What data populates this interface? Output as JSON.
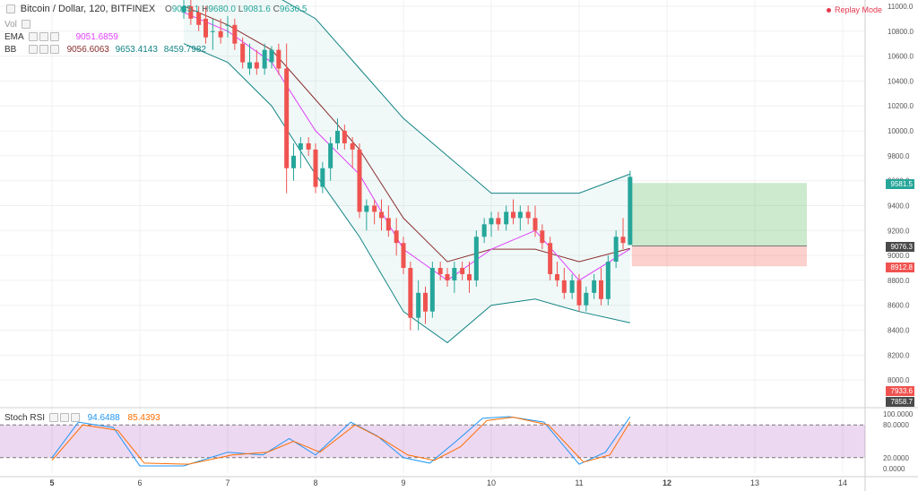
{
  "header": {
    "symbol": "Bitcoin / Dollar, 120, BITFINEX",
    "ohlc": {
      "o_label": "O",
      "o": "9085.1",
      "h_label": "H",
      "h": "9680.0",
      "l_label": "L",
      "l": "9081.6",
      "c_label": "C",
      "c": "9630.5"
    },
    "vol_label": "Vol"
  },
  "indicators": {
    "ema": {
      "name": "EMA",
      "value": "9051.6859",
      "color": "#e040fb"
    },
    "bb": {
      "name": "BB",
      "basis": "9056.6063",
      "upper": "9653.4143",
      "lower": "8459.7982",
      "basis_color": "#8b2e2e",
      "band_color": "#138484"
    }
  },
  "replay": {
    "label": "Replay Mode"
  },
  "stoch": {
    "name": "Stoch RSI",
    "k": "94.6488",
    "d": "85.4393",
    "k_color": "#2196f3",
    "d_color": "#ff6d00",
    "upper": 80,
    "lower": 20
  },
  "price_tags": {
    "last": {
      "value": "9581.5",
      "color": "#26a69a"
    },
    "entry": {
      "value": "9076.3",
      "color": "#4a4a4a"
    },
    "stop": {
      "value": "8912.8",
      "color": "#ef5350"
    },
    "low_a": {
      "value": "7933.6",
      "color": "#ef5350"
    },
    "low_b": {
      "value": "7858.7",
      "color": "#4a4a4a"
    }
  },
  "position": {
    "target": 9581.5,
    "entry": 9076.3,
    "stop": 8912.8
  },
  "chart_data": {
    "type": "candlestick",
    "price_axis": {
      "ticks": [
        11000,
        10800,
        10600,
        10400,
        10200,
        10000,
        9800,
        9600,
        9400,
        9200,
        9000,
        8800,
        8600,
        8400,
        8200,
        8000
      ],
      "ylim": [
        7800,
        11050
      ]
    },
    "stoch_axis": {
      "ticks": [
        "100.0000",
        "80.0000",
        "20.0000",
        "0.0000"
      ]
    },
    "x_ticks": [
      {
        "label": "5",
        "x": 5.0,
        "bold": true
      },
      {
        "label": "6",
        "x": 6.0
      },
      {
        "label": "7",
        "x": 7.0
      },
      {
        "label": "8",
        "x": 8.0
      },
      {
        "label": "9",
        "x": 9.0
      },
      {
        "label": "10",
        "x": 10.0
      },
      {
        "label": "11",
        "x": 11.0
      },
      {
        "label": "12",
        "x": 12.0,
        "bold": true
      },
      {
        "label": "13",
        "x": 13.0
      },
      {
        "label": "14",
        "x": 14.0
      }
    ],
    "candles": [
      [
        6.5,
        10950,
        11050,
        10900,
        11000
      ],
      [
        6.58,
        11000,
        11050,
        10850,
        10900
      ],
      [
        6.67,
        10950,
        11000,
        10800,
        10850
      ],
      [
        6.75,
        10900,
        11000,
        10700,
        10750
      ],
      [
        6.83,
        10800,
        10900,
        10650,
        10800
      ],
      [
        6.92,
        10800,
        10900,
        10700,
        10750
      ],
      [
        7.0,
        10850,
        10920,
        10750,
        10850
      ],
      [
        7.08,
        10850,
        10900,
        10650,
        10700
      ],
      [
        7.17,
        10700,
        10750,
        10500,
        10550
      ],
      [
        7.25,
        10500,
        10700,
        10450,
        10550
      ],
      [
        7.33,
        10550,
        10650,
        10450,
        10500
      ],
      [
        7.42,
        10500,
        10700,
        10450,
        10650
      ],
      [
        7.5,
        10550,
        10680,
        10500,
        10650
      ],
      [
        7.58,
        10650,
        10700,
        10450,
        10500
      ],
      [
        7.67,
        10500,
        10700,
        9500,
        9700
      ],
      [
        7.75,
        9700,
        9900,
        9600,
        9800
      ],
      [
        7.83,
        9850,
        9950,
        9700,
        9900
      ],
      [
        7.92,
        9900,
        9950,
        9800,
        9850
      ],
      [
        8.0,
        9850,
        9900,
        9500,
        9550
      ],
      [
        8.08,
        9550,
        9750,
        9500,
        9700
      ],
      [
        8.17,
        9700,
        9950,
        9600,
        9900
      ],
      [
        8.25,
        9900,
        10100,
        9850,
        10000
      ],
      [
        8.33,
        10000,
        10050,
        9850,
        9900
      ],
      [
        8.42,
        9900,
        9950,
        9700,
        9850
      ],
      [
        8.5,
        9850,
        9900,
        9300,
        9350
      ],
      [
        8.58,
        9350,
        9450,
        9200,
        9400
      ],
      [
        8.67,
        9400,
        9450,
        9250,
        9350
      ],
      [
        8.75,
        9350,
        9450,
        9200,
        9300
      ],
      [
        8.83,
        9300,
        9400,
        9150,
        9200
      ],
      [
        8.92,
        9200,
        9300,
        9000,
        9100
      ],
      [
        9.0,
        9100,
        9150,
        8850,
        8900
      ],
      [
        9.08,
        8900,
        8950,
        8400,
        8500
      ],
      [
        9.17,
        8500,
        8800,
        8400,
        8700
      ],
      [
        9.25,
        8700,
        8750,
        8450,
        8550
      ],
      [
        9.33,
        8550,
        8950,
        8500,
        8900
      ],
      [
        9.42,
        8900,
        8950,
        8800,
        8850
      ],
      [
        9.5,
        8850,
        8900,
        8750,
        8800
      ],
      [
        9.58,
        8800,
        8950,
        8700,
        8900
      ],
      [
        9.67,
        8900,
        8950,
        8800,
        8850
      ],
      [
        9.75,
        8850,
        8950,
        8700,
        8800
      ],
      [
        9.83,
        8800,
        9200,
        8750,
        9150
      ],
      [
        9.92,
        9150,
        9300,
        9100,
        9250
      ],
      [
        10.0,
        9250,
        9350,
        9150,
        9300
      ],
      [
        10.08,
        9300,
        9350,
        9200,
        9250
      ],
      [
        10.17,
        9250,
        9400,
        9200,
        9350
      ],
      [
        10.25,
        9350,
        9450,
        9250,
        9300
      ],
      [
        10.33,
        9300,
        9400,
        9200,
        9350
      ],
      [
        10.42,
        9350,
        9400,
        9250,
        9300
      ],
      [
        10.5,
        9300,
        9400,
        9150,
        9200
      ],
      [
        10.58,
        9200,
        9250,
        9050,
        9100
      ],
      [
        10.67,
        9100,
        9150,
        8800,
        8850
      ],
      [
        10.75,
        8850,
        8950,
        8750,
        8800
      ],
      [
        10.83,
        8800,
        8900,
        8650,
        8700
      ],
      [
        10.92,
        8700,
        8850,
        8650,
        8800
      ],
      [
        11.0,
        8800,
        8850,
        8550,
        8600
      ],
      [
        11.08,
        8600,
        8750,
        8550,
        8700
      ],
      [
        11.17,
        8700,
        8850,
        8650,
        8800
      ],
      [
        11.25,
        8800,
        8900,
        8600,
        8650
      ],
      [
        11.33,
        8650,
        9000,
        8600,
        8950
      ],
      [
        11.42,
        8950,
        9200,
        8900,
        9150
      ],
      [
        11.5,
        9150,
        9300,
        9050,
        9100
      ],
      [
        11.58,
        9085.1,
        9680,
        9081.6,
        9630.5
      ]
    ],
    "ema": [
      [
        6.5,
        10950
      ],
      [
        7.0,
        10800
      ],
      [
        7.5,
        10550
      ],
      [
        8.0,
        10000
      ],
      [
        8.5,
        9650
      ],
      [
        9.0,
        9050
      ],
      [
        9.5,
        8800
      ],
      [
        10.0,
        9050
      ],
      [
        10.5,
        9200
      ],
      [
        11.0,
        8800
      ],
      [
        11.58,
        9051.6859
      ]
    ],
    "bb_basis": [
      [
        6.5,
        11000
      ],
      [
        7.0,
        10850
      ],
      [
        7.5,
        10650
      ],
      [
        8.0,
        10250
      ],
      [
        8.5,
        9850
      ],
      [
        9.0,
        9300
      ],
      [
        9.5,
        8950
      ],
      [
        10.0,
        9050
      ],
      [
        10.5,
        9050
      ],
      [
        11.0,
        8950
      ],
      [
        11.58,
        9056.6063
      ]
    ],
    "bb_upper": [
      [
        6.5,
        11200
      ],
      [
        7.0,
        11150
      ],
      [
        7.5,
        11100
      ],
      [
        8.0,
        10900
      ],
      [
        8.5,
        10500
      ],
      [
        9.0,
        10100
      ],
      [
        9.5,
        9800
      ],
      [
        10.0,
        9500
      ],
      [
        10.5,
        9500
      ],
      [
        11.0,
        9500
      ],
      [
        11.58,
        9653.4143
      ]
    ],
    "bb_lower": [
      [
        6.5,
        10700
      ],
      [
        7.0,
        10550
      ],
      [
        7.5,
        10200
      ],
      [
        8.0,
        9650
      ],
      [
        8.5,
        9150
      ],
      [
        9.0,
        8550
      ],
      [
        9.5,
        8300
      ],
      [
        10.0,
        8600
      ],
      [
        10.5,
        8650
      ],
      [
        11.0,
        8550
      ],
      [
        11.58,
        8459.7982
      ]
    ],
    "stoch_k": [
      [
        5.0,
        20
      ],
      [
        5.3,
        85
      ],
      [
        5.7,
        75
      ],
      [
        6.0,
        5
      ],
      [
        6.5,
        5
      ],
      [
        7.0,
        30
      ],
      [
        7.4,
        25
      ],
      [
        7.7,
        55
      ],
      [
        8.0,
        25
      ],
      [
        8.4,
        85
      ],
      [
        8.7,
        60
      ],
      [
        9.0,
        20
      ],
      [
        9.3,
        10
      ],
      [
        9.6,
        50
      ],
      [
        9.9,
        92
      ],
      [
        10.2,
        95
      ],
      [
        10.6,
        85
      ],
      [
        11.0,
        8
      ],
      [
        11.3,
        30
      ],
      [
        11.58,
        94.6488
      ]
    ],
    "stoch_d": [
      [
        5.0,
        15
      ],
      [
        5.35,
        80
      ],
      [
        5.75,
        70
      ],
      [
        6.05,
        10
      ],
      [
        6.55,
        8
      ],
      [
        7.05,
        25
      ],
      [
        7.45,
        30
      ],
      [
        7.75,
        50
      ],
      [
        8.05,
        30
      ],
      [
        8.45,
        80
      ],
      [
        8.75,
        55
      ],
      [
        9.05,
        25
      ],
      [
        9.35,
        15
      ],
      [
        9.65,
        40
      ],
      [
        9.95,
        88
      ],
      [
        10.25,
        94
      ],
      [
        10.65,
        80
      ],
      [
        11.05,
        12
      ],
      [
        11.35,
        25
      ],
      [
        11.58,
        85.4393
      ]
    ]
  }
}
